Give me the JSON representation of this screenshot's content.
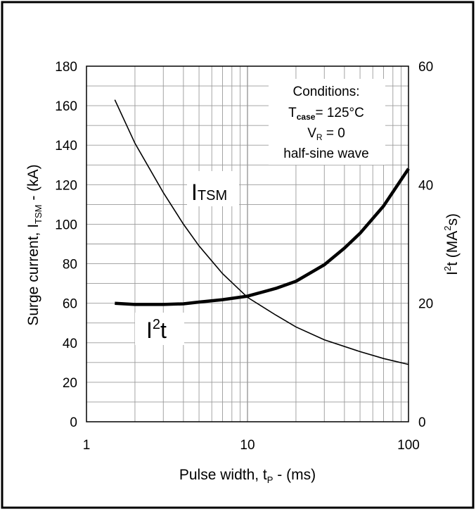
{
  "chart_data": {
    "type": "line",
    "x_scale": "log",
    "xlim": [
      1,
      100
    ],
    "ylim_left": [
      0,
      180
    ],
    "ylim_right": [
      0,
      60
    ],
    "grid": true,
    "x_ticks": [
      "1",
      "10",
      "100"
    ],
    "y_left_ticks": [
      "0",
      "20",
      "40",
      "60",
      "80",
      "100",
      "120",
      "140",
      "160",
      "180"
    ],
    "y_right_ticks": [
      "0",
      "20",
      "40",
      "60"
    ],
    "xlabel": {
      "main": "Pulse width, t",
      "sub": "P",
      "tail": " - (ms)"
    },
    "ylabel_left": {
      "main": "Surge current, I",
      "sub": "TSM",
      "tail": " -  (kA)"
    },
    "ylabel_right": {
      "main": "I",
      "sup": "2",
      "tail": "t (MA",
      "sup2": "2",
      "tail2": "s)"
    },
    "conditions": {
      "title": "Conditions:",
      "tcase_main": "T",
      "tcase_sub": "case",
      "tcase_tail": "= 125°C",
      "vr_main": "V",
      "vr_sub": "R",
      "vr_tail": " = 0",
      "wave": "half-sine wave"
    },
    "series": [
      {
        "label_main": "I",
        "label_sub": "TSM",
        "axis": "left",
        "x": [
          1.5,
          2,
          3,
          4,
          5,
          7,
          10,
          15,
          20,
          30,
          50,
          70,
          100
        ],
        "values": [
          163,
          141,
          116,
          100,
          89,
          75,
          63,
          54,
          48,
          41.5,
          35.5,
          32,
          29
        ]
      },
      {
        "label_main": "I",
        "label_sup": "2",
        "label_tail": "t",
        "axis": "right",
        "x": [
          1.5,
          2,
          3,
          4,
          5,
          7,
          10,
          15,
          20,
          30,
          40,
          50,
          70,
          100
        ],
        "values": [
          20,
          19.8,
          19.8,
          19.9,
          20.2,
          20.6,
          21.2,
          22.5,
          23.7,
          26.5,
          29.3,
          31.8,
          36.4,
          42.7
        ]
      }
    ]
  }
}
